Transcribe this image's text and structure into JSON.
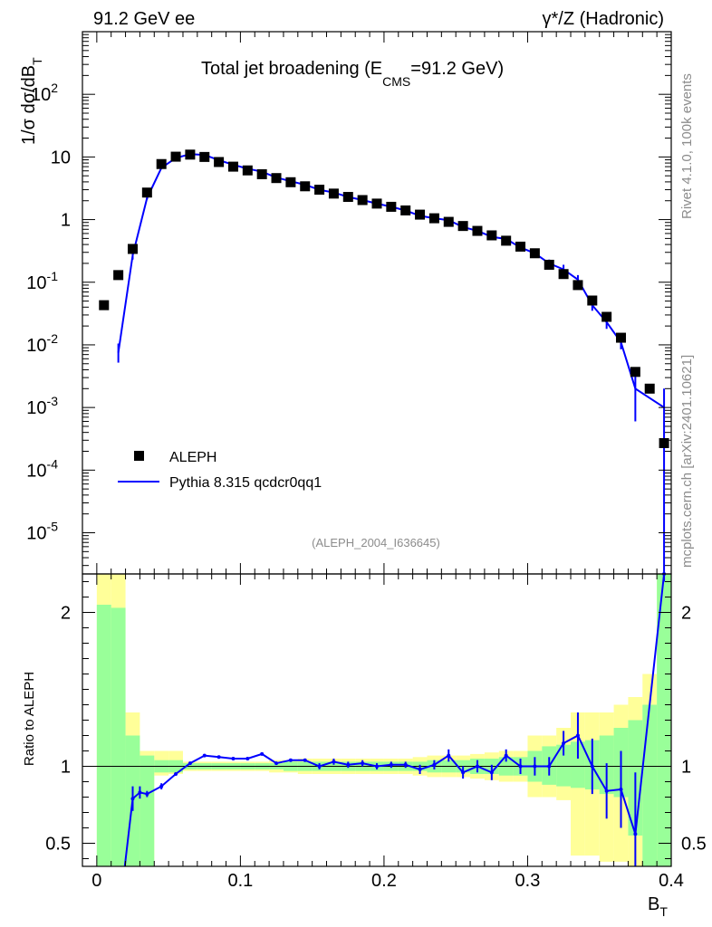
{
  "header": {
    "left": "91.2 GeV ee",
    "right": "γ*/Z (Hadronic)",
    "title": "Total jet broadening (E",
    "title_sub": "CMS",
    "title_end": "=91.2 GeV)"
  },
  "side": {
    "rivet": "Rivet 4.1.0,  100k events",
    "mcplots": "mcplots.cern.ch [arXiv:2401.10621]"
  },
  "analysis_id": "(ALEPH_2004_I636645)",
  "legend": {
    "data": "ALEPH",
    "mc": "Pythia 8.315 qcdcr0qq1"
  },
  "colors": {
    "data": "#000000",
    "mc": "#0000ff",
    "band_inner": "#99ff99",
    "band_outer": "#ffff99"
  },
  "chart_data": {
    "type": "scatter",
    "main": {
      "ylabel": "1/σ  dσ/dB",
      "ylabel_sub": "T",
      "yscale": "log",
      "ylim": [
        2.2e-06,
        1000
      ],
      "ytick_labels": [
        {
          "base": "10",
          "exp": "-5",
          "v": 1e-05
        },
        {
          "base": "10",
          "exp": "-4",
          "v": 0.0001
        },
        {
          "base": "10",
          "exp": "-3",
          "v": 0.001
        },
        {
          "base": "10",
          "exp": "-2",
          "v": 0.01
        },
        {
          "base": "10",
          "exp": "-1",
          "v": 0.1
        },
        {
          "base": "1",
          "exp": "",
          "v": 1
        },
        {
          "base": "10",
          "exp": "",
          "v": 10
        },
        {
          "base": "10",
          "exp": "2",
          "v": 100
        }
      ]
    },
    "ratio": {
      "ylabel": "Ratio to ALEPH",
      "ylim": [
        0.35,
        2.25
      ],
      "ytick_labels": [
        "0.5",
        "1",
        "2"
      ],
      "ytick_values": [
        0.5,
        1,
        2
      ]
    },
    "x": {
      "label": "B",
      "label_sub": "T",
      "xlim": [
        -0.01,
        0.4
      ],
      "tick_labels": [
        "0",
        "0.1",
        "0.2",
        "0.3",
        "0.4"
      ],
      "tick_values": [
        0,
        0.1,
        0.2,
        0.3,
        0.4
      ]
    },
    "aleph": {
      "x": [
        0.005,
        0.015,
        0.025,
        0.035,
        0.045,
        0.055,
        0.065,
        0.075,
        0.085,
        0.095,
        0.105,
        0.115,
        0.125,
        0.135,
        0.145,
        0.155,
        0.165,
        0.175,
        0.185,
        0.195,
        0.205,
        0.215,
        0.225,
        0.235,
        0.245,
        0.255,
        0.265,
        0.275,
        0.285,
        0.295,
        0.305,
        0.315,
        0.325,
        0.335,
        0.345,
        0.355,
        0.365,
        0.375,
        0.385,
        0.395
      ],
      "y": [
        0.043,
        0.13,
        0.34,
        2.7,
        7.7,
        10.1,
        10.9,
        10.0,
        8.3,
        7.0,
        6.1,
        5.3,
        4.6,
        3.95,
        3.4,
        3.0,
        2.6,
        2.3,
        2.05,
        1.8,
        1.6,
        1.4,
        1.2,
        1.05,
        0.92,
        0.79,
        0.66,
        0.56,
        0.46,
        0.37,
        0.29,
        0.19,
        0.135,
        0.09,
        0.051,
        0.028,
        0.013,
        0.0037,
        0.002,
        0.00027
      ]
    },
    "pythia": {
      "x": [
        0.015,
        0.025,
        0.035,
        0.045,
        0.055,
        0.065,
        0.075,
        0.085,
        0.095,
        0.105,
        0.115,
        0.125,
        0.135,
        0.145,
        0.155,
        0.165,
        0.175,
        0.185,
        0.195,
        0.205,
        0.215,
        0.225,
        0.235,
        0.245,
        0.255,
        0.265,
        0.275,
        0.285,
        0.295,
        0.305,
        0.315,
        0.325,
        0.335,
        0.345,
        0.355,
        0.365,
        0.375,
        0.395
      ],
      "y": [
        0.0075,
        0.27,
        2.2,
        6.7,
        9.6,
        11.1,
        10.8,
        8.9,
        7.5,
        6.5,
        5.8,
        4.7,
        4.1,
        3.6,
        3.0,
        2.7,
        2.3,
        2.05,
        1.8,
        1.6,
        1.4,
        1.15,
        1.05,
        0.98,
        0.76,
        0.66,
        0.53,
        0.49,
        0.36,
        0.29,
        0.2,
        0.16,
        0.11,
        0.043,
        0.023,
        0.011,
        0.002,
        0.001
      ],
      "ylo": [
        0.0052,
        0.23,
        2.1,
        6.5,
        9.4,
        10.9,
        10.6,
        8.7,
        7.3,
        6.3,
        5.6,
        4.6,
        4.0,
        3.5,
        2.9,
        2.6,
        2.2,
        1.95,
        1.7,
        1.5,
        1.3,
        1.05,
        0.95,
        0.88,
        0.7,
        0.6,
        0.48,
        0.44,
        0.32,
        0.25,
        0.17,
        0.13,
        0.09,
        0.035,
        0.018,
        0.0085,
        0.0006,
        2.2e-06
      ],
      "yhi": [
        0.0105,
        0.31,
        2.3,
        6.9,
        9.8,
        11.3,
        11.0,
        9.1,
        7.7,
        6.7,
        6.0,
        4.8,
        4.2,
        3.7,
        3.1,
        2.8,
        2.4,
        2.15,
        1.9,
        1.7,
        1.5,
        1.25,
        1.15,
        1.08,
        0.82,
        0.72,
        0.58,
        0.54,
        0.4,
        0.33,
        0.23,
        0.19,
        0.13,
        0.051,
        0.028,
        0.014,
        0.0034,
        0.002
      ]
    },
    "ratio_points": {
      "x": [
        0.025,
        0.03,
        0.035,
        0.045,
        0.055,
        0.065,
        0.075,
        0.085,
        0.095,
        0.105,
        0.115,
        0.125,
        0.135,
        0.145,
        0.155,
        0.165,
        0.175,
        0.185,
        0.195,
        0.205,
        0.215,
        0.225,
        0.235,
        0.245,
        0.255,
        0.265,
        0.275,
        0.285,
        0.295,
        0.305,
        0.315,
        0.325,
        0.335,
        0.345,
        0.355,
        0.365,
        0.375,
        0.395
      ],
      "y": [
        0.79,
        0.83,
        0.82,
        0.87,
        0.95,
        1.02,
        1.07,
        1.06,
        1.05,
        1.05,
        1.08,
        1.02,
        1.04,
        1.04,
        1.0,
        1.03,
        1.01,
        1.02,
        1.0,
        1.01,
        1.01,
        0.98,
        1.01,
        1.07,
        0.96,
        1.0,
        0.96,
        1.07,
        1.0,
        1.0,
        1.0,
        1.15,
        1.2,
        1.0,
        0.84,
        0.85,
        0.56,
        2.3
      ],
      "err": [
        0.08,
        0.04,
        0.02,
        0.02,
        0.01,
        0.01,
        0.01,
        0.01,
        0.01,
        0.01,
        0.01,
        0.01,
        0.01,
        0.01,
        0.02,
        0.02,
        0.02,
        0.02,
        0.02,
        0.02,
        0.02,
        0.03,
        0.03,
        0.04,
        0.04,
        0.04,
        0.05,
        0.04,
        0.05,
        0.06,
        0.06,
        0.08,
        0.15,
        0.18,
        0.18,
        0.25,
        0.4,
        0.1
      ]
    },
    "bands": {
      "x_edges": [
        0.0,
        0.01,
        0.02,
        0.03,
        0.04,
        0.05,
        0.06,
        0.07,
        0.08,
        0.09,
        0.1,
        0.11,
        0.12,
        0.13,
        0.14,
        0.15,
        0.16,
        0.17,
        0.18,
        0.19,
        0.2,
        0.21,
        0.22,
        0.23,
        0.24,
        0.25,
        0.26,
        0.27,
        0.28,
        0.29,
        0.3,
        0.31,
        0.32,
        0.33,
        0.34,
        0.35,
        0.36,
        0.37,
        0.38,
        0.39,
        0.4
      ],
      "inner_lo": [
        0.35,
        0.35,
        0.35,
        0.35,
        0.96,
        0.96,
        0.98,
        0.98,
        0.98,
        0.98,
        0.98,
        0.98,
        0.98,
        0.97,
        0.97,
        0.97,
        0.97,
        0.97,
        0.97,
        0.97,
        0.97,
        0.97,
        0.97,
        0.96,
        0.96,
        0.96,
        0.95,
        0.95,
        0.94,
        0.94,
        0.9,
        0.88,
        0.87,
        0.86,
        0.85,
        0.82,
        0.8,
        0.55,
        0.35,
        0.35
      ],
      "inner_hi": [
        2.05,
        2.03,
        1.2,
        1.07,
        1.04,
        1.04,
        1.02,
        1.02,
        1.02,
        1.02,
        1.02,
        1.02,
        1.02,
        1.03,
        1.03,
        1.03,
        1.03,
        1.03,
        1.03,
        1.03,
        1.03,
        1.03,
        1.03,
        1.04,
        1.04,
        1.04,
        1.05,
        1.05,
        1.06,
        1.06,
        1.1,
        1.13,
        1.14,
        1.16,
        1.17,
        1.2,
        1.25,
        1.3,
        1.4,
        2.25
      ],
      "outer_lo": [
        0.35,
        0.35,
        0.35,
        0.35,
        0.94,
        0.95,
        0.97,
        0.97,
        0.97,
        0.97,
        0.97,
        0.97,
        0.96,
        0.96,
        0.95,
        0.95,
        0.95,
        0.95,
        0.95,
        0.95,
        0.95,
        0.95,
        0.94,
        0.93,
        0.93,
        0.93,
        0.92,
        0.91,
        0.9,
        0.9,
        0.8,
        0.8,
        0.78,
        0.42,
        0.42,
        0.38,
        0.38,
        0.35,
        0.35,
        0.35
      ],
      "outer_hi": [
        2.25,
        2.25,
        1.35,
        1.1,
        1.1,
        1.1,
        1.03,
        1.03,
        1.03,
        1.03,
        1.03,
        1.03,
        1.04,
        1.04,
        1.05,
        1.05,
        1.05,
        1.05,
        1.05,
        1.05,
        1.05,
        1.05,
        1.06,
        1.07,
        1.07,
        1.07,
        1.08,
        1.09,
        1.1,
        1.1,
        1.2,
        1.2,
        1.25,
        1.35,
        1.35,
        1.35,
        1.4,
        1.45,
        1.6,
        2.25
      ]
    }
  }
}
